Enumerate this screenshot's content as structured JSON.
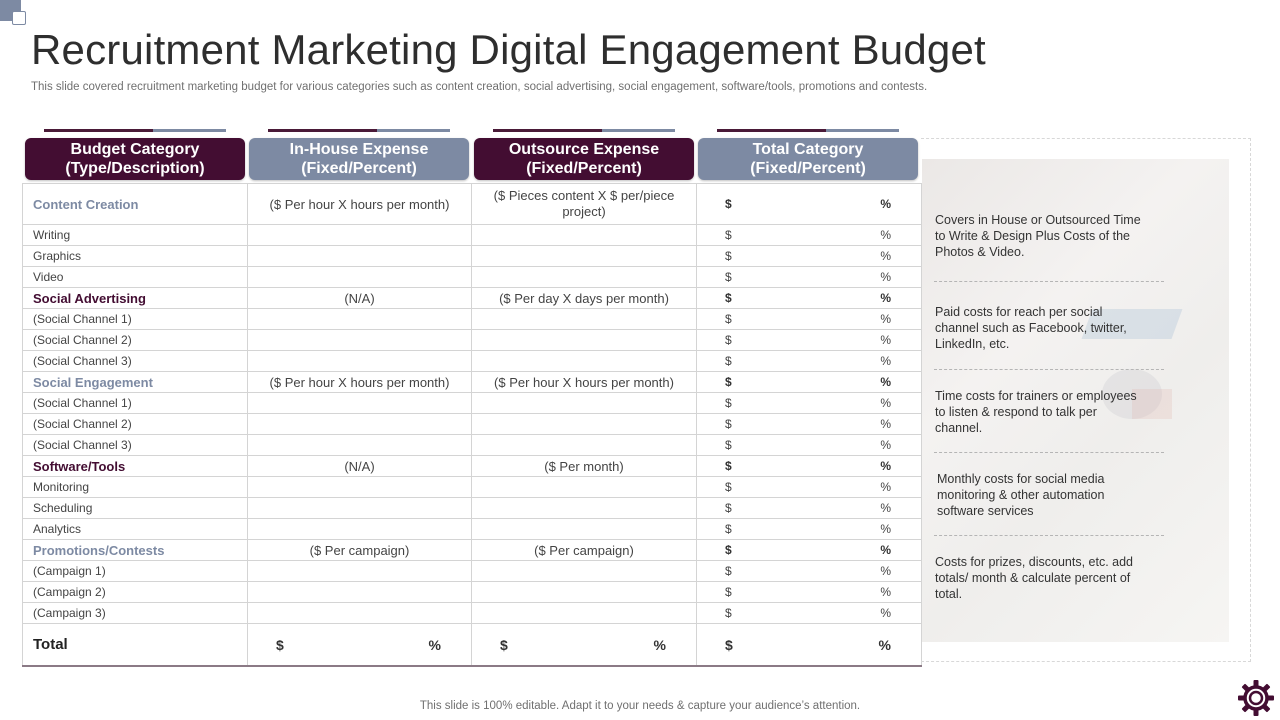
{
  "title": "Recruitment Marketing Digital Engagement Budget",
  "subtitle": "This slide covered recruitment marketing budget for various categories such as content creation, social advertising, social engagement, software/tools, promotions and contests.",
  "footer": "This slide is 100% editable. Adapt it to your needs & capture your audience’s attention.",
  "colors": {
    "dark_purple": "#430d32",
    "slate": "#7d8aa3"
  },
  "headers": [
    {
      "line1": "Budget Category",
      "line2": "(Type/Description)"
    },
    {
      "line1": "In-House Expense",
      "line2": "(Fixed/Percent)"
    },
    {
      "line1": "Outsource  Expense",
      "line2": "(Fixed/Percent)"
    },
    {
      "line1": "Total Category",
      "line2": "(Fixed/Percent)"
    }
  ],
  "symbols": {
    "dollar": "$",
    "percent": "%"
  },
  "rows": [
    {
      "label": "Content Creation",
      "inhouse": "($ Per hour X hours per month)",
      "outsource": "($ Pieces content X $ per/piece project)"
    },
    {
      "label": "Writing"
    },
    {
      "label": "Graphics"
    },
    {
      "label": "Video"
    },
    {
      "label": "Social Advertising",
      "inhouse": "(N/A)",
      "outsource": "($ Per day X days per month)"
    },
    {
      "label": "(Social Channel 1)"
    },
    {
      "label": "(Social Channel 2)"
    },
    {
      "label": "(Social Channel 3)"
    },
    {
      "label": "Social Engagement",
      "inhouse": "($ Per hour X hours per month)",
      "outsource": "($ Per hour X hours per month)"
    },
    {
      "label": "(Social Channel 1)"
    },
    {
      "label": "(Social Channel 2)"
    },
    {
      "label": "(Social Channel 3)"
    },
    {
      "label": "Software/Tools",
      "inhouse": "(N/A)",
      "outsource": "($ Per month)"
    },
    {
      "label": "Monitoring"
    },
    {
      "label": "Scheduling"
    },
    {
      "label": "Analytics"
    },
    {
      "label": "Promotions/Contests",
      "inhouse": "($ Per campaign)",
      "outsource": "($ Per campaign)"
    },
    {
      "label": "(Campaign 1)"
    },
    {
      "label": "(Campaign 2)"
    },
    {
      "label": "(Campaign 3)"
    }
  ],
  "total_label": "Total",
  "notes": [
    "Covers  in House or Outsourced Time to Write & Design Plus Costs of the Photos & Video.",
    "Paid costs for reach per social channel such as Facebook, twitter, LinkedIn, etc.",
    "Time costs for trainers or employees to listen & respond to talk per channel.",
    "Monthly costs for social media monitoring & other automation software services",
    "Costs for prizes, discounts, etc. add totals/ month & calculate percent of total."
  ]
}
